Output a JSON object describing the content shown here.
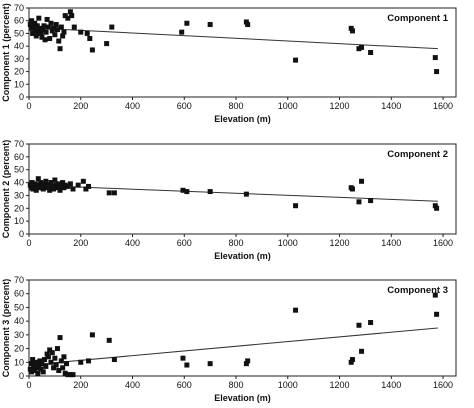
{
  "chart_data": [
    {
      "type": "scatter",
      "title": "Component 1",
      "xlabel": "Elevation (m)",
      "ylabel": "Component 1 (percent)",
      "xlim": [
        0,
        1650
      ],
      "ylim": [
        0,
        70
      ],
      "xticks": [
        "0",
        "200",
        "400",
        "600",
        "800",
        "1000",
        "1200",
        "1400",
        "1600"
      ],
      "yticks": [
        "0",
        "10",
        "20",
        "30",
        "40",
        "50",
        "60",
        "70"
      ],
      "grid": false,
      "marker_color": "#111111",
      "line_color": "#333333",
      "trendline": {
        "x": [
          0,
          1580
        ],
        "y": [
          54.5,
          38
        ]
      },
      "points": [
        {
          "x": 5,
          "y": 57
        },
        {
          "x": 8,
          "y": 54
        },
        {
          "x": 10,
          "y": 60
        },
        {
          "x": 14,
          "y": 50
        },
        {
          "x": 18,
          "y": 55
        },
        {
          "x": 22,
          "y": 58
        },
        {
          "x": 25,
          "y": 52
        },
        {
          "x": 28,
          "y": 48
        },
        {
          "x": 32,
          "y": 56
        },
        {
          "x": 35,
          "y": 51
        },
        {
          "x": 38,
          "y": 62
        },
        {
          "x": 42,
          "y": 54
        },
        {
          "x": 46,
          "y": 50
        },
        {
          "x": 50,
          "y": 47
        },
        {
          "x": 54,
          "y": 53
        },
        {
          "x": 58,
          "y": 56
        },
        {
          "x": 62,
          "y": 45
        },
        {
          "x": 66,
          "y": 51
        },
        {
          "x": 70,
          "y": 61
        },
        {
          "x": 75,
          "y": 55
        },
        {
          "x": 80,
          "y": 46
        },
        {
          "x": 85,
          "y": 58
        },
        {
          "x": 90,
          "y": 52
        },
        {
          "x": 95,
          "y": 54
        },
        {
          "x": 100,
          "y": 49
        },
        {
          "x": 105,
          "y": 57
        },
        {
          "x": 110,
          "y": 53
        },
        {
          "x": 115,
          "y": 44
        },
        {
          "x": 120,
          "y": 38
        },
        {
          "x": 125,
          "y": 55
        },
        {
          "x": 130,
          "y": 48
        },
        {
          "x": 135,
          "y": 51
        },
        {
          "x": 140,
          "y": 64
        },
        {
          "x": 150,
          "y": 62
        },
        {
          "x": 160,
          "y": 67
        },
        {
          "x": 165,
          "y": 64
        },
        {
          "x": 175,
          "y": 55
        },
        {
          "x": 200,
          "y": 51
        },
        {
          "x": 225,
          "y": 50
        },
        {
          "x": 235,
          "y": 46
        },
        {
          "x": 245,
          "y": 37
        },
        {
          "x": 300,
          "y": 42
        },
        {
          "x": 320,
          "y": 55
        },
        {
          "x": 590,
          "y": 51
        },
        {
          "x": 610,
          "y": 58
        },
        {
          "x": 700,
          "y": 57
        },
        {
          "x": 840,
          "y": 59
        },
        {
          "x": 845,
          "y": 57
        },
        {
          "x": 1030,
          "y": 29
        },
        {
          "x": 1245,
          "y": 54
        },
        {
          "x": 1250,
          "y": 52
        },
        {
          "x": 1275,
          "y": 38
        },
        {
          "x": 1285,
          "y": 39
        },
        {
          "x": 1320,
          "y": 35
        },
        {
          "x": 1570,
          "y": 31
        },
        {
          "x": 1575,
          "y": 20
        }
      ]
    },
    {
      "type": "scatter",
      "title": "Component 2",
      "xlabel": "Elevation (m)",
      "ylabel": "Component 2 (percent)",
      "xlim": [
        0,
        1650
      ],
      "ylim": [
        0,
        70
      ],
      "xticks": [
        "0",
        "200",
        "400",
        "600",
        "800",
        "1000",
        "1200",
        "1400",
        "1600"
      ],
      "yticks": [
        "0",
        "10",
        "20",
        "30",
        "40",
        "50",
        "60",
        "70"
      ],
      "grid": false,
      "marker_color": "#111111",
      "line_color": "#333333",
      "trendline": {
        "x": [
          0,
          1580
        ],
        "y": [
          38,
          25.5
        ]
      },
      "points": [
        {
          "x": 5,
          "y": 38
        },
        {
          "x": 8,
          "y": 36
        },
        {
          "x": 12,
          "y": 40
        },
        {
          "x": 15,
          "y": 35
        },
        {
          "x": 20,
          "y": 37
        },
        {
          "x": 24,
          "y": 39
        },
        {
          "x": 28,
          "y": 34
        },
        {
          "x": 32,
          "y": 38
        },
        {
          "x": 36,
          "y": 43
        },
        {
          "x": 40,
          "y": 36
        },
        {
          "x": 45,
          "y": 40
        },
        {
          "x": 50,
          "y": 37
        },
        {
          "x": 55,
          "y": 35
        },
        {
          "x": 60,
          "y": 39
        },
        {
          "x": 65,
          "y": 41
        },
        {
          "x": 70,
          "y": 36
        },
        {
          "x": 75,
          "y": 38
        },
        {
          "x": 80,
          "y": 34
        },
        {
          "x": 85,
          "y": 40
        },
        {
          "x": 90,
          "y": 37
        },
        {
          "x": 95,
          "y": 35
        },
        {
          "x": 100,
          "y": 42
        },
        {
          "x": 105,
          "y": 38
        },
        {
          "x": 110,
          "y": 36
        },
        {
          "x": 115,
          "y": 39
        },
        {
          "x": 120,
          "y": 34
        },
        {
          "x": 125,
          "y": 37
        },
        {
          "x": 130,
          "y": 40
        },
        {
          "x": 135,
          "y": 36
        },
        {
          "x": 140,
          "y": 38
        },
        {
          "x": 150,
          "y": 37
        },
        {
          "x": 160,
          "y": 39
        },
        {
          "x": 170,
          "y": 35
        },
        {
          "x": 190,
          "y": 38
        },
        {
          "x": 210,
          "y": 41
        },
        {
          "x": 220,
          "y": 35
        },
        {
          "x": 230,
          "y": 37
        },
        {
          "x": 310,
          "y": 32
        },
        {
          "x": 330,
          "y": 32
        },
        {
          "x": 595,
          "y": 34
        },
        {
          "x": 610,
          "y": 33
        },
        {
          "x": 700,
          "y": 33
        },
        {
          "x": 840,
          "y": 31
        },
        {
          "x": 1030,
          "y": 22
        },
        {
          "x": 1245,
          "y": 36
        },
        {
          "x": 1250,
          "y": 35
        },
        {
          "x": 1275,
          "y": 25
        },
        {
          "x": 1285,
          "y": 41
        },
        {
          "x": 1320,
          "y": 26
        },
        {
          "x": 1570,
          "y": 22
        },
        {
          "x": 1575,
          "y": 20
        }
      ]
    },
    {
      "type": "scatter",
      "title": "Component 3",
      "xlabel": "Elevation (m)",
      "ylabel": "Component 3 (percent)",
      "xlim": [
        0,
        1650
      ],
      "ylim": [
        0,
        70
      ],
      "xticks": [
        "0",
        "200",
        "400",
        "600",
        "800",
        "1000",
        "1200",
        "1400",
        "1600"
      ],
      "yticks": [
        "0",
        "10",
        "20",
        "30",
        "40",
        "50",
        "60",
        "70"
      ],
      "grid": false,
      "marker_color": "#111111",
      "line_color": "#333333",
      "trendline": {
        "x": [
          0,
          1580
        ],
        "y": [
          8,
          35
        ]
      },
      "points": [
        {
          "x": 5,
          "y": 5
        },
        {
          "x": 8,
          "y": 9
        },
        {
          "x": 10,
          "y": 3
        },
        {
          "x": 14,
          "y": 12
        },
        {
          "x": 18,
          "y": 7
        },
        {
          "x": 22,
          "y": 4
        },
        {
          "x": 26,
          "y": 10
        },
        {
          "x": 30,
          "y": 6
        },
        {
          "x": 34,
          "y": 2
        },
        {
          "x": 38,
          "y": 8
        },
        {
          "x": 42,
          "y": 11
        },
        {
          "x": 46,
          "y": 5
        },
        {
          "x": 50,
          "y": 9
        },
        {
          "x": 55,
          "y": 3
        },
        {
          "x": 60,
          "y": 12
        },
        {
          "x": 65,
          "y": 7
        },
        {
          "x": 70,
          "y": 16
        },
        {
          "x": 75,
          "y": 14
        },
        {
          "x": 80,
          "y": 19
        },
        {
          "x": 85,
          "y": 10
        },
        {
          "x": 90,
          "y": 17
        },
        {
          "x": 95,
          "y": 6
        },
        {
          "x": 100,
          "y": 13
        },
        {
          "x": 105,
          "y": 8
        },
        {
          "x": 110,
          "y": 20
        },
        {
          "x": 115,
          "y": 4
        },
        {
          "x": 120,
          "y": 28
        },
        {
          "x": 125,
          "y": 11
        },
        {
          "x": 130,
          "y": 6
        },
        {
          "x": 135,
          "y": 14
        },
        {
          "x": 140,
          "y": 2
        },
        {
          "x": 145,
          "y": 9
        },
        {
          "x": 150,
          "y": 1
        },
        {
          "x": 160,
          "y": 1
        },
        {
          "x": 170,
          "y": 1
        },
        {
          "x": 200,
          "y": 10
        },
        {
          "x": 230,
          "y": 11
        },
        {
          "x": 245,
          "y": 30
        },
        {
          "x": 310,
          "y": 26
        },
        {
          "x": 330,
          "y": 12
        },
        {
          "x": 595,
          "y": 13
        },
        {
          "x": 610,
          "y": 8
        },
        {
          "x": 700,
          "y": 9
        },
        {
          "x": 840,
          "y": 9
        },
        {
          "x": 845,
          "y": 11
        },
        {
          "x": 1030,
          "y": 48
        },
        {
          "x": 1245,
          "y": 10
        },
        {
          "x": 1250,
          "y": 12
        },
        {
          "x": 1275,
          "y": 37
        },
        {
          "x": 1285,
          "y": 18
        },
        {
          "x": 1320,
          "y": 39
        },
        {
          "x": 1570,
          "y": 59
        },
        {
          "x": 1575,
          "y": 45
        }
      ]
    }
  ]
}
